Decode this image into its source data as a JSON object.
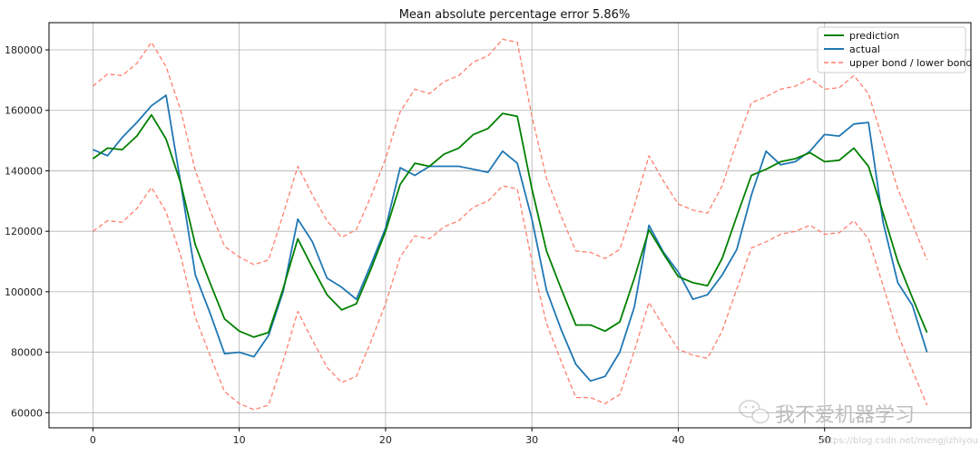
{
  "chart_data": {
    "type": "line",
    "title": "Mean absolute percentage error 5.86%",
    "xlabel": "",
    "ylabel": "",
    "xlim": [
      -3,
      60
    ],
    "ylim": [
      55000,
      189000
    ],
    "xticks": [
      0,
      10,
      20,
      30,
      40,
      50
    ],
    "yticks": [
      60000,
      80000,
      100000,
      120000,
      140000,
      160000,
      180000
    ],
    "grid": true,
    "legend_position": "top-right",
    "colors": {
      "prediction": "#008000",
      "actual": "#1f77b4",
      "bounds": "#ff7f6e",
      "grid": "#b0b0b0"
    },
    "series": [
      {
        "name": "prediction",
        "style": "solid",
        "x": [
          0,
          1,
          2,
          3,
          4,
          5,
          6,
          7,
          8,
          9,
          10,
          11,
          12,
          13,
          14,
          15,
          16,
          17,
          18,
          19,
          20,
          21,
          22,
          23,
          24,
          25,
          26,
          27,
          28,
          29,
          30,
          31,
          32,
          33,
          34,
          35,
          36,
          37,
          38,
          39,
          40,
          41,
          42,
          43,
          44,
          45,
          46,
          47,
          48,
          49,
          50,
          51,
          52,
          53,
          54,
          55,
          56,
          57
        ],
        "values": [
          144000,
          147500,
          147000,
          151500,
          158500,
          150500,
          136000,
          115500,
          103000,
          91000,
          87000,
          85000,
          86500,
          101000,
          117500,
          108000,
          99000,
          94000,
          96000,
          107500,
          120000,
          135500,
          142500,
          141500,
          145500,
          147500,
          152000,
          154000,
          159000,
          158000,
          134000,
          113500,
          101000,
          89000,
          89000,
          87000,
          90000,
          104500,
          120500,
          112500,
          105000,
          103000,
          102000,
          111000,
          125000,
          138500,
          140500,
          143000,
          144000,
          146000,
          143000,
          143500,
          147500,
          141500,
          126000,
          110000,
          98000,
          86500
        ]
      },
      {
        "name": "actual",
        "style": "solid",
        "x": [
          0,
          1,
          2,
          3,
          4,
          5,
          6,
          7,
          8,
          9,
          10,
          11,
          12,
          13,
          14,
          15,
          16,
          17,
          18,
          19,
          20,
          21,
          22,
          23,
          24,
          25,
          26,
          27,
          28,
          29,
          30,
          31,
          32,
          33,
          34,
          35,
          36,
          37,
          38,
          39,
          40,
          41,
          42,
          43,
          44,
          45,
          46,
          47,
          48,
          49,
          50,
          51,
          52,
          53,
          54,
          55,
          56,
          57
        ],
        "values": [
          147000,
          145000,
          151000,
          156000,
          161500,
          165000,
          136000,
          105500,
          93000,
          79500,
          80000,
          78500,
          85500,
          100000,
          124000,
          116500,
          104500,
          101500,
          97500,
          109000,
          121000,
          141000,
          138500,
          141500,
          141500,
          141500,
          140500,
          139500,
          146500,
          142500,
          124000,
          100500,
          87500,
          76000,
          70500,
          72000,
          80000,
          95000,
          122000,
          113000,
          106500,
          97500,
          99000,
          105500,
          114000,
          132000,
          146500,
          142000,
          143000,
          146500,
          152000,
          151500,
          155500,
          156000,
          123000,
          103000,
          95500,
          80000
        ]
      },
      {
        "name": "upper bond / lower bond",
        "style": "dashed",
        "x": [
          0,
          1,
          2,
          3,
          4,
          5,
          6,
          7,
          8,
          9,
          10,
          11,
          12,
          13,
          14,
          15,
          16,
          17,
          18,
          19,
          20,
          21,
          22,
          23,
          24,
          25,
          26,
          27,
          28,
          29,
          30,
          31,
          32,
          33,
          34,
          35,
          36,
          37,
          38,
          39,
          40,
          41,
          42,
          43,
          44,
          45,
          46,
          47,
          48,
          49,
          50,
          51,
          52,
          53,
          54,
          55,
          56,
          57
        ],
        "values": [
          168000,
          172000,
          171500,
          175500,
          182500,
          174500,
          160000,
          140000,
          127000,
          115000,
          111500,
          109000,
          110500,
          125500,
          141500,
          132000,
          123500,
          118000,
          120500,
          131500,
          144000,
          159500,
          167000,
          165500,
          169500,
          171500,
          176000,
          178000,
          183500,
          182500,
          158000,
          137500,
          125000,
          113500,
          113000,
          111000,
          114000,
          128500,
          145000,
          136500,
          129000,
          127000,
          126000,
          135000,
          149500,
          162500,
          164500,
          167000,
          168000,
          170500,
          167000,
          167500,
          171500,
          165500,
          150000,
          134000,
          122500,
          110500
        ]
      },
      {
        "name": "lower bond",
        "style": "dashed",
        "legend": false,
        "x": [
          0,
          1,
          2,
          3,
          4,
          5,
          6,
          7,
          8,
          9,
          10,
          11,
          12,
          13,
          14,
          15,
          16,
          17,
          18,
          19,
          20,
          21,
          22,
          23,
          24,
          25,
          26,
          27,
          28,
          29,
          30,
          31,
          32,
          33,
          34,
          35,
          36,
          37,
          38,
          39,
          40,
          41,
          42,
          43,
          44,
          45,
          46,
          47,
          48,
          49,
          50,
          51,
          52,
          53,
          54,
          55,
          56,
          57
        ],
        "values": [
          120000,
          123500,
          123000,
          127500,
          134500,
          126500,
          112000,
          91500,
          79000,
          67000,
          63000,
          61000,
          62500,
          77000,
          93500,
          84000,
          75000,
          70000,
          72000,
          83500,
          96000,
          111500,
          118500,
          117500,
          121500,
          123500,
          128000,
          130000,
          135000,
          134000,
          110000,
          89500,
          77000,
          65000,
          65000,
          63000,
          66000,
          80500,
          96500,
          88500,
          81000,
          79000,
          78000,
          87000,
          101000,
          114500,
          116500,
          119000,
          120000,
          122000,
          119000,
          119500,
          123500,
          117500,
          102000,
          86000,
          74000,
          62500
        ]
      }
    ]
  },
  "watermark": {
    "text": "我不爱机器学习",
    "url": "https://blog.csdn.net/mengjizhiyou"
  }
}
